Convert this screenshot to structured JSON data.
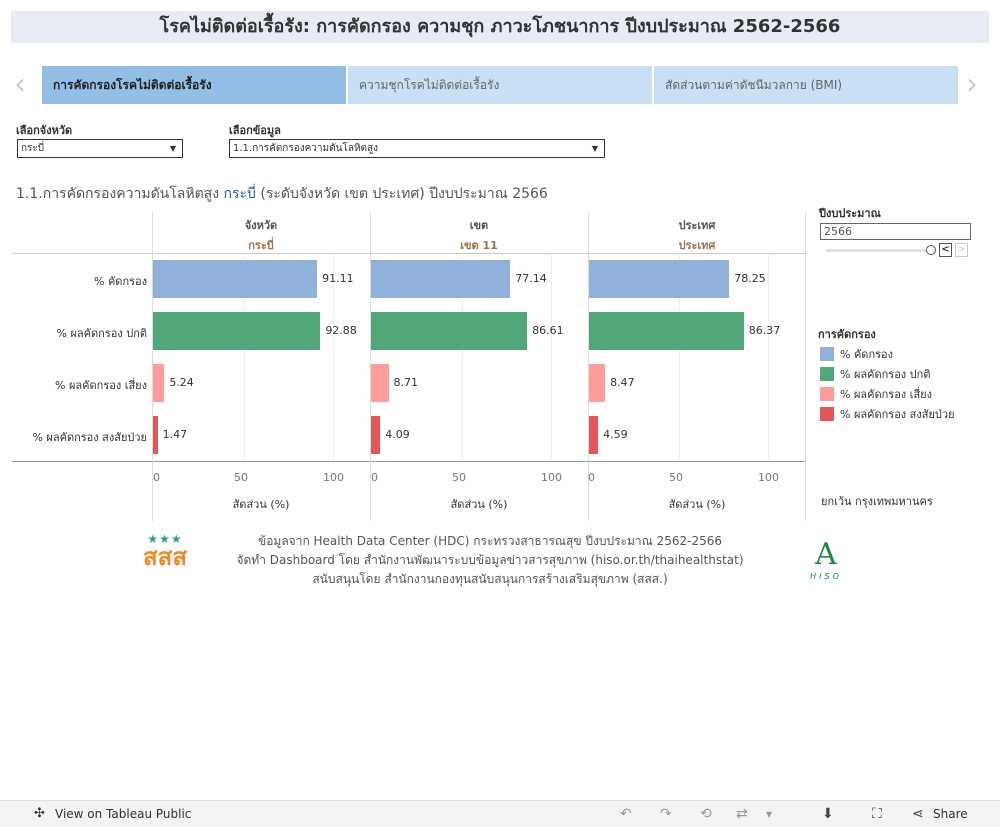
{
  "header": {
    "title": "โรคไม่ติดต่อเรื้อรัง: การคัดกรอง ความชุก ภาวะโภชนาการ ปีงบประมาณ 2562-2566"
  },
  "tabs": [
    {
      "label": "การคัดกรองโรคไม่ติดต่อเรื้อรัง",
      "active": true
    },
    {
      "label": "ความชุกโรคไม่ติดต่อเรื้อรัง",
      "active": false
    },
    {
      "label": "สัดส่วนตามค่าดัชนีมวลกาย (BMI)",
      "active": false
    }
  ],
  "filters": {
    "province_label": "เลือกจังหวัด",
    "province_value": "กระบี่",
    "data_label": "เลือกข้อมูล",
    "data_value": "1.1.การคัดกรองความดันโลหิตสูง"
  },
  "subtitle": {
    "pre": "1.1.การคัดกรองความดันโลหิตสูง ",
    "province": "กระบี่",
    "post": " (ระดับจังหวัด เขต ประเทศ) ปีงบประมาณ 2566"
  },
  "year_filter": {
    "label": "ปีงบประมาณ",
    "value": "2566",
    "slider_fraction": 1.0
  },
  "legend": {
    "title": "การคัดกรอง",
    "items": [
      {
        "label": "% คัดกรอง",
        "color": "#8fb1da"
      },
      {
        "label": "% ผลคัดกรอง ปกติ",
        "color": "#52a77a"
      },
      {
        "label": "% ผลคัดกรอง เสี่ยง",
        "color": "#ff9d9a"
      },
      {
        "label": "% ผลคัดกรอง สงสัยป่วย",
        "color": "#e15759"
      }
    ]
  },
  "note": "ยกเว้น กรุงเทพมหานคร",
  "chart_data": {
    "type": "bar",
    "orientation": "horizontal",
    "categories": [
      "% คัดกรอง",
      "% ผลคัดกรอง ปกติ",
      "% ผลคัดกรอง เสี่ยง",
      "% ผลคัดกรอง สงสัยป่วย"
    ],
    "panels": [
      {
        "header": "จังหวัด",
        "sub": "กระบี่",
        "values": [
          91.11,
          92.88,
          5.24,
          1.47
        ]
      },
      {
        "header": "เขต",
        "sub": "เขต 11",
        "values": [
          77.14,
          86.61,
          8.71,
          4.09
        ]
      },
      {
        "header": "ประเทศ",
        "sub": "ประเทศ",
        "values": [
          78.25,
          86.37,
          8.47,
          4.59
        ]
      }
    ],
    "xlim": [
      0,
      100
    ],
    "ticks": [
      "0",
      "50",
      "100"
    ],
    "xlabel": "สัดส่วน (%)",
    "colors": [
      "#8fb1da",
      "#52a77a",
      "#ff9d9a",
      "#e15759"
    ]
  },
  "footer": {
    "lines": [
      "ข้อมูลจาก Health Data Center (HDC) กระทรวงสาธารณสุข ปีงบประมาณ 2562-2566",
      "จัดทำ Dashboard โดย สำนักงานพัฒนาระบบข้อมูลข่าวสารสุขภาพ (hiso.or.th/thaihealthstat)",
      "สนับสนุนโดย สำนักงานกองทุนสนับสนุนการสร้างเสริมสุขภาพ (สสส.)"
    ],
    "logo_left": "สสส",
    "logo_right": "HISO"
  },
  "toolbar": {
    "view_label": "View on Tableau Public",
    "share_label": "Share"
  }
}
